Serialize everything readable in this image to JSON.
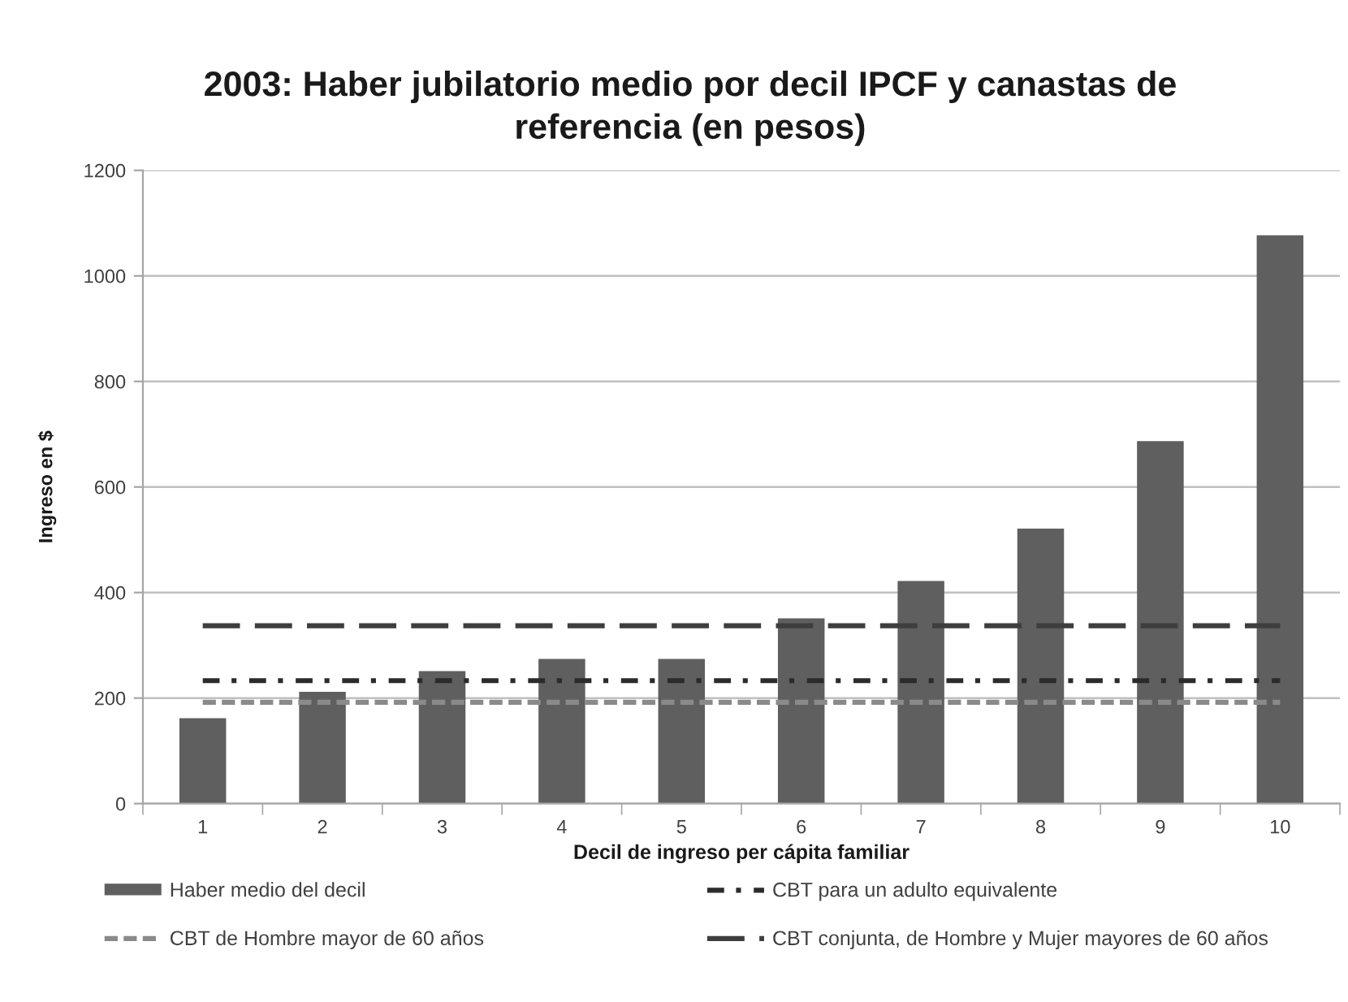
{
  "chart_data": {
    "type": "bar",
    "title": "2003: Haber jubilatorio medio por decil IPCF y canastas de\nreferencia (en pesos)",
    "xlabel": "Decil de ingreso per cápita familiar",
    "ylabel": "Ingreso en $",
    "categories": [
      "1",
      "2",
      "3",
      "4",
      "5",
      "6",
      "7",
      "8",
      "9",
      "10"
    ],
    "series": [
      {
        "name": "Haber medio del decil",
        "color": "#5f5f5f",
        "values": [
          162,
          212,
          251,
          274,
          274,
          351,
          422,
          521,
          687,
          1077
        ]
      },
      {
        "name": "CBT para un adulto equivalente",
        "type": "line",
        "line_style": "dashdot",
        "color": "#2b2b2b",
        "values": [
          233,
          233,
          233,
          233,
          233,
          233,
          233,
          233,
          233,
          233
        ]
      },
      {
        "name": "CBT de Hombre mayor de 60 años",
        "type": "line",
        "line_style": "dashed",
        "color": "#8a8a8a",
        "values": [
          192,
          192,
          192,
          192,
          192,
          192,
          192,
          192,
          192,
          192
        ]
      },
      {
        "name": "CBT conjunta, de Hombre y Mujer mayores de 60 años",
        "type": "line",
        "line_style": "longdash",
        "color": "#3e3e3e",
        "values": [
          337,
          337,
          337,
          337,
          337,
          337,
          337,
          337,
          337,
          337
        ]
      }
    ],
    "ylim": [
      0,
      1200
    ],
    "yticks": [
      0,
      200,
      400,
      600,
      800,
      1000,
      1200
    ],
    "grid": "y",
    "legend": "bottom"
  }
}
